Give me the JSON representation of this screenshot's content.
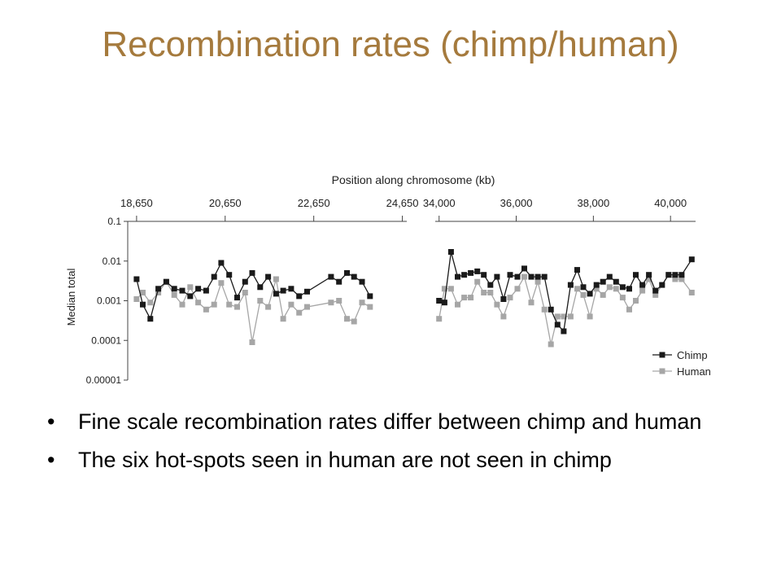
{
  "slide": {
    "title": "Recombination rates (chimp/human)",
    "bullets": [
      "Fine scale recombination rates differ between chimp and human",
      "The six hot-spots seen in human are not seen in chimp"
    ]
  },
  "chart_data": {
    "type": "line",
    "title": "",
    "xlabel": "Position along chromosome (kb)",
    "ylabel": "Median total",
    "yscale": "log",
    "ylim": [
      1e-05,
      0.1
    ],
    "yticks": [
      {
        "value": 0.1,
        "label": "0.1"
      },
      {
        "value": 0.01,
        "label": "0.01"
      },
      {
        "value": 0.001,
        "label": "0.001"
      },
      {
        "value": 0.0001,
        "label": "0.0001"
      },
      {
        "value": 1e-05,
        "label": "0.00001"
      }
    ],
    "legend": {
      "placement": "bottom-right"
    },
    "colors": {
      "Chimp": "#1a1a1a",
      "Human": "#a6a6a6"
    },
    "panels": [
      {
        "xlim": [
          18450,
          24750
        ],
        "xticks": [
          {
            "value": 18650,
            "label": "18,650"
          },
          {
            "value": 20650,
            "label": "20,650"
          },
          {
            "value": 22650,
            "label": "22,650"
          },
          {
            "value": 24650,
            "label": "24,650"
          }
        ],
        "series": [
          {
            "name": "Chimp",
            "x": [
              18650,
              18790,
              18960,
              19140,
              19320,
              19500,
              19680,
              19860,
              20040,
              20220,
              20400,
              20560,
              20740,
              20920,
              21100,
              21260,
              21440,
              21620,
              21800,
              21960,
              22140,
              22320,
              22500,
              23040,
              23220,
              23400,
              23560,
              23740,
              23920
            ],
            "y": [
              0.0035,
              0.0008,
              0.00035,
              0.002,
              0.003,
              0.002,
              0.0018,
              0.0013,
              0.002,
              0.0018,
              0.004,
              0.009,
              0.0045,
              0.0012,
              0.003,
              0.005,
              0.0022,
              0.004,
              0.0015,
              0.0018,
              0.002,
              0.0013,
              0.0017,
              0.004,
              0.003,
              0.005,
              0.004,
              0.003,
              0.0013
            ]
          },
          {
            "name": "Human",
            "x": [
              18650,
              18790,
              18960,
              19140,
              19320,
              19500,
              19680,
              19860,
              20040,
              20220,
              20400,
              20560,
              20740,
              20920,
              21100,
              21260,
              21440,
              21620,
              21800,
              21960,
              22140,
              22320,
              22500,
              23040,
              23220,
              23400,
              23560,
              23740,
              23920
            ],
            "y": [
              0.0011,
              0.0016,
              0.0009,
              0.0016,
              0.003,
              0.0014,
              0.0008,
              0.0022,
              0.0009,
              0.0006,
              0.0008,
              0.0028,
              0.0008,
              0.0007,
              0.0016,
              9e-05,
              0.001,
              0.0007,
              0.0035,
              0.00035,
              0.0008,
              0.0005,
              0.0007,
              0.0009,
              0.001,
              0.00035,
              0.0003,
              0.0009,
              0.0007
            ]
          }
        ]
      },
      {
        "xlim": [
          33900,
          40650
        ],
        "xticks": [
          {
            "value": 34000,
            "label": "34,000"
          },
          {
            "value": 36000,
            "label": "36,000"
          },
          {
            "value": 38000,
            "label": "38,000"
          },
          {
            "value": 40000,
            "label": "40,000"
          }
        ],
        "series": [
          {
            "name": "Chimp",
            "x": [
              34000,
              34140,
              34310,
              34480,
              34650,
              34820,
              34990,
              35160,
              35330,
              35500,
              35670,
              35840,
              36030,
              36210,
              36390,
              36560,
              36730,
              36900,
              37070,
              37230,
              37410,
              37580,
              37740,
              37910,
              38080,
              38250,
              38420,
              38590,
              38760,
              38930,
              39100,
              39270,
              39440,
              39610,
              39780,
              39950,
              40120,
              40290,
              40550
            ],
            "y": [
              0.001,
              0.0009,
              0.017,
              0.004,
              0.0045,
              0.005,
              0.0055,
              0.0045,
              0.0025,
              0.004,
              0.0011,
              0.0045,
              0.004,
              0.0065,
              0.004,
              0.004,
              0.004,
              0.0006,
              0.00025,
              0.00017,
              0.0025,
              0.006,
              0.0022,
              0.0015,
              0.0025,
              0.003,
              0.004,
              0.003,
              0.0022,
              0.002,
              0.0045,
              0.0025,
              0.0045,
              0.0018,
              0.0025,
              0.0045,
              0.0045,
              0.0045,
              0.011
            ]
          },
          {
            "name": "Human",
            "x": [
              34000,
              34140,
              34310,
              34480,
              34650,
              34820,
              34990,
              35160,
              35330,
              35500,
              35670,
              35840,
              36030,
              36210,
              36390,
              36560,
              36730,
              36900,
              37070,
              37230,
              37410,
              37580,
              37740,
              37910,
              38080,
              38250,
              38420,
              38590,
              38760,
              38930,
              39100,
              39270,
              39440,
              39610,
              39780,
              39950,
              40120,
              40290,
              40550
            ],
            "y": [
              0.00035,
              0.002,
              0.002,
              0.0008,
              0.0012,
              0.0012,
              0.003,
              0.0016,
              0.0016,
              0.0008,
              0.0004,
              0.0012,
              0.002,
              0.004,
              0.0009,
              0.003,
              0.0006,
              8e-05,
              0.0004,
              0.0004,
              0.0004,
              0.002,
              0.0014,
              0.0004,
              0.002,
              0.0014,
              0.0022,
              0.002,
              0.0012,
              0.0006,
              0.001,
              0.0018,
              0.0035,
              0.0014,
              0.0025,
              0.0045,
              0.0035,
              0.0035,
              0.0016
            ]
          }
        ]
      }
    ]
  }
}
